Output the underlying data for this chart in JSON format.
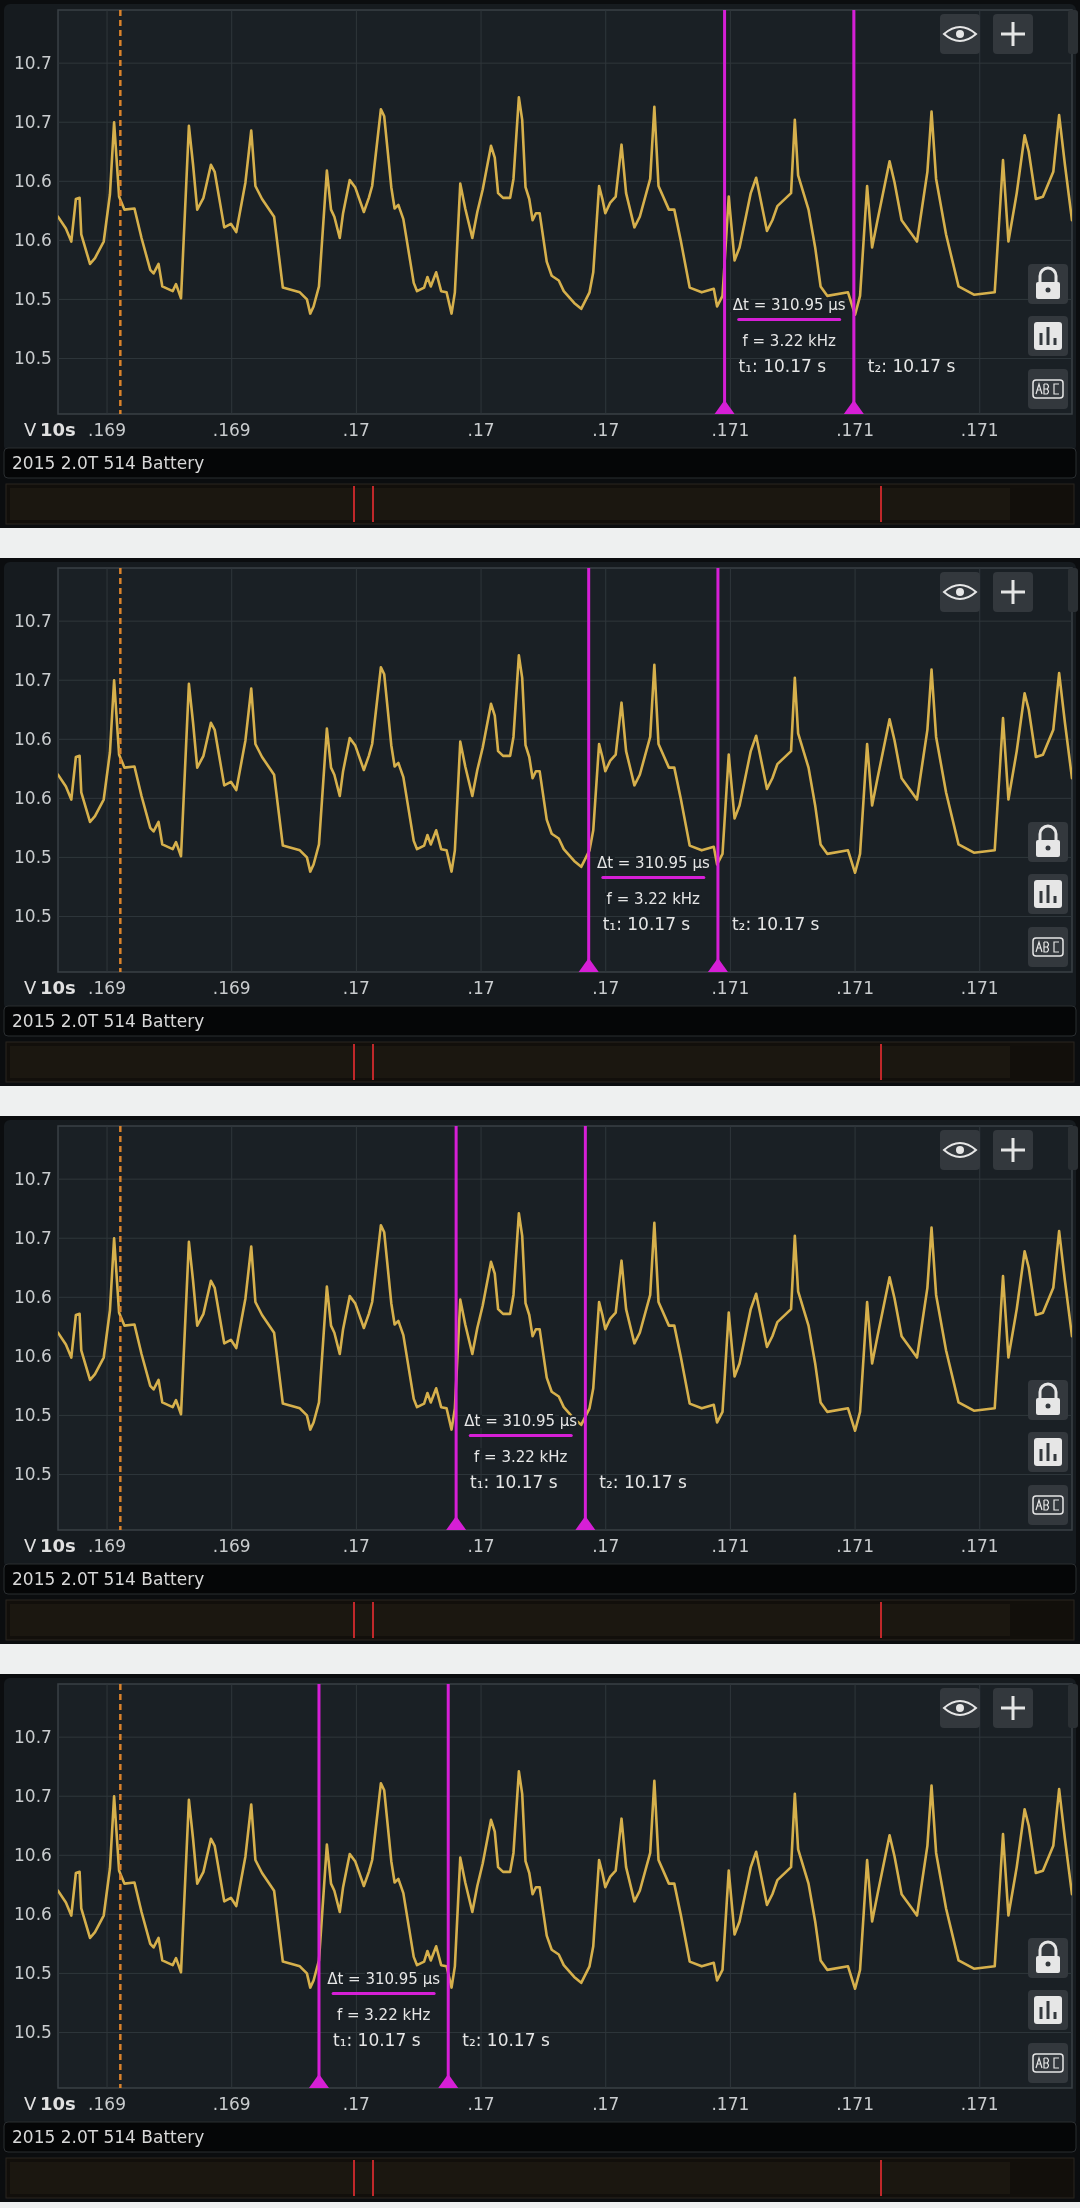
{
  "chart_data": [
    {
      "type": "line",
      "title": "2015 2.0T 514 Battery",
      "xlabel": "10s",
      "ylabel": "V",
      "grid": true,
      "x": [
        0.168932,
        0.168951,
        0.168964,
        0.168975,
        0.168984,
        0.168988,
        0.169009,
        0.169021,
        0.169042,
        0.169057,
        0.169067,
        0.169079,
        0.169092,
        0.169116,
        0.169133,
        0.169154,
        0.169162,
        0.169174,
        0.169183,
        0.169208,
        0.169216,
        0.169228,
        0.169247,
        0.169257,
        0.169267,
        0.169282,
        0.1693,
        0.169309,
        0.169332,
        0.169348,
        0.169361,
        0.169383,
        0.169397,
        0.169407,
        0.169423,
        0.169452,
        0.169473,
        0.169514,
        0.169531,
        0.169539,
        0.169547,
        0.16956,
        0.169579,
        0.169589,
        0.169597,
        0.16961,
        0.169618,
        0.169634,
        0.169647,
        0.169668,
        0.16968,
        0.169688,
        0.169709,
        0.169717,
        0.169734,
        0.169742,
        0.169751,
        0.169763,
        0.169788,
        0.169796,
        0.169813,
        0.169821,
        0.169829,
        0.169842,
        0.169854,
        0.169867,
        0.169879,
        0.169887,
        0.1699,
        0.169912,
        0.169929,
        0.169941,
        0.169954,
        0.169974,
        0.169983,
        0.169991,
        0.170003,
        0.17002,
        0.170028,
        0.170041,
        0.170049,
        0.170057,
        0.170066,
        0.170074,
        0.170082,
        0.170091,
        0.170108,
        0.17012,
        0.170137,
        0.170149,
        0.170174,
        0.170191,
        0.170211,
        0.17022,
        0.170234,
        0.170242,
        0.170249,
        0.170261,
        0.170274,
        0.170288,
        0.170299,
        0.170319,
        0.170332,
        0.170357,
        0.170367,
        0.170377,
        0.170402,
        0.170415,
        0.170431,
        0.170452,
        0.170481,
        0.17051,
        0.170518,
        0.170531,
        0.170546,
        0.17056,
        0.170572,
        0.170599,
        0.170612,
        0.170638,
        0.170651,
        0.170663,
        0.170696,
        0.170705,
        0.170713,
        0.170738,
        0.170754,
        0.170767,
        0.170783,
        0.170833,
        0.17085,
        0.170862,
        0.170879,
        0.170891,
        0.170904,
        0.170933,
        0.170945,
        0.170962,
        0.170987,
        0.170999,
        0.171024,
        0.171034,
        0.171045,
        0.171069,
        0.171099,
        0.171136,
        0.171186,
        0.171206,
        0.171219,
        0.171239,
        0.171258,
        0.171268,
        0.171285,
        0.171302,
        0.171327,
        0.171341,
        0.171355,
        0.171372
      ],
      "series": [
        {
          "color": "#d6b04c",
          "values": [
            10.595,
            10.585,
            10.574,
            10.61,
            10.611,
            10.58,
            10.555,
            10.56,
            10.574,
            10.614,
            10.675,
            10.612,
            10.601,
            10.602,
            10.577,
            10.55,
            10.547,
            10.555,
            10.536,
            10.532,
            10.538,
            10.526,
            10.672,
            10.639,
            10.601,
            10.611,
            10.639,
            10.633,
            10.586,
            10.589,
            10.582,
            10.624,
            10.668,
            10.621,
            10.61,
            10.595,
            10.535,
            10.531,
            10.525,
            10.513,
            10.519,
            10.536,
            10.634,
            10.601,
            10.595,
            10.577,
            10.598,
            10.626,
            10.62,
            10.599,
            10.611,
            10.621,
            10.686,
            10.68,
            10.62,
            10.602,
            10.605,
            10.593,
            10.539,
            10.532,
            10.535,
            10.544,
            10.536,
            10.548,
            10.532,
            10.531,
            10.513,
            10.531,
            10.623,
            10.602,
            10.577,
            10.599,
            10.618,
            10.655,
            10.645,
            10.615,
            10.611,
            10.611,
            10.627,
            10.696,
            10.677,
            10.62,
            10.61,
            10.592,
            10.598,
            10.598,
            10.557,
            10.545,
            10.541,
            10.532,
            10.522,
            10.517,
            10.531,
            10.548,
            10.621,
            10.61,
            10.598,
            10.607,
            10.612,
            10.656,
            10.615,
            10.586,
            10.595,
            10.627,
            10.688,
            10.621,
            10.601,
            10.601,
            10.574,
            10.535,
            10.531,
            10.534,
            10.519,
            10.528,
            10.612,
            10.558,
            10.569,
            10.615,
            10.628,
            10.583,
            10.592,
            10.604,
            10.615,
            10.677,
            10.63,
            10.601,
            10.569,
            10.536,
            10.528,
            10.531,
            10.512,
            10.528,
            10.621,
            10.569,
            10.592,
            10.642,
            10.624,
            10.592,
            10.58,
            10.574,
            10.633,
            10.684,
            10.627,
            10.58,
            10.536,
            10.529,
            10.531,
            10.643,
            10.574,
            10.615,
            10.664,
            10.65,
            10.61,
            10.612,
            10.633,
            10.681,
            10.639,
            10.592
          ]
        }
      ],
      "xlim": [
        0.168932,
        0.171372
      ],
      "ylim": [
        10.428,
        10.77
      ],
      "xticks": [
        {
          "value": 0.16905,
          "label": ".169"
        },
        {
          "value": 0.16935,
          "label": ".169"
        },
        {
          "value": 0.16965,
          "label": ".17"
        },
        {
          "value": 0.16995,
          "label": ".17"
        },
        {
          "value": 0.17025,
          "label": ".17"
        },
        {
          "value": 0.17055,
          "label": ".171"
        },
        {
          "value": 0.17085,
          "label": ".171"
        },
        {
          "value": 0.17115,
          "label": ".171"
        }
      ],
      "yticks": [
        {
          "value": 10.725,
          "label": "10.7"
        },
        {
          "value": 10.675,
          "label": "10.7"
        },
        {
          "value": 10.625,
          "label": "10.6"
        },
        {
          "value": 10.575,
          "label": "10.6"
        },
        {
          "value": 10.525,
          "label": "10.5"
        },
        {
          "value": 10.475,
          "label": "10.5"
        }
      ],
      "ref_lines": [
        {
          "axis": "x",
          "value": 0.169082,
          "label": null,
          "color": "#d9822b",
          "line_style": "dashed"
        },
        {
          "axis": "x",
          "value": 0.170536,
          "color": "#d61fd6",
          "line_style": "solid"
        },
        {
          "axis": "x",
          "value": 0.170847,
          "color": "#d61fd6",
          "line_style": "solid"
        }
      ],
      "annotations": [
        "Δt = 310.95 µs",
        "f = 3.22 kHz",
        "t₁: 10.17 s",
        "t₂: 10.17 s"
      ]
    },
    {
      "type": "line",
      "title": "2015 2.0T 514 Battery",
      "xlabel": "10s",
      "ylabel": "V",
      "grid": true,
      "x": [
        0.168932,
        0.168951,
        0.168964,
        0.168975,
        0.168984,
        0.168988,
        0.169009,
        0.169021,
        0.169042,
        0.169057,
        0.169067,
        0.169079,
        0.169092,
        0.169116,
        0.169133,
        0.169154,
        0.169162,
        0.169174,
        0.169183,
        0.169208,
        0.169216,
        0.169228,
        0.169247,
        0.169257,
        0.169267,
        0.169282,
        0.1693,
        0.169309,
        0.169332,
        0.169348,
        0.169361,
        0.169383,
        0.169397,
        0.169407,
        0.169423,
        0.169452,
        0.169473,
        0.169514,
        0.169531,
        0.169539,
        0.169547,
        0.16956,
        0.169579,
        0.169589,
        0.169597,
        0.16961,
        0.169618,
        0.169634,
        0.169647,
        0.169668,
        0.16968,
        0.169688,
        0.169709,
        0.169717,
        0.169734,
        0.169742,
        0.169751,
        0.169763,
        0.169788,
        0.169796,
        0.169813,
        0.169821,
        0.169829,
        0.169842,
        0.169854,
        0.169867,
        0.169879,
        0.169887,
        0.1699,
        0.169912,
        0.169929,
        0.169941,
        0.169954,
        0.169974,
        0.169983,
        0.169991,
        0.170003,
        0.17002,
        0.170028,
        0.170041,
        0.170049,
        0.170057,
        0.170066,
        0.170074,
        0.170082,
        0.170091,
        0.170108,
        0.17012,
        0.170137,
        0.170149,
        0.170174,
        0.170191,
        0.170211,
        0.17022,
        0.170234,
        0.170242,
        0.170249,
        0.170261,
        0.170274,
        0.170288,
        0.170299,
        0.170319,
        0.170332,
        0.170357,
        0.170367,
        0.170377,
        0.170402,
        0.170415,
        0.170431,
        0.170452,
        0.170481,
        0.17051,
        0.170518,
        0.170531,
        0.170546,
        0.17056,
        0.170572,
        0.170599,
        0.170612,
        0.170638,
        0.170651,
        0.170663,
        0.170696,
        0.170705,
        0.170713,
        0.170738,
        0.170754,
        0.170767,
        0.170783,
        0.170833,
        0.17085,
        0.170862,
        0.170879,
        0.170891,
        0.170904,
        0.170933,
        0.170945,
        0.170962,
        0.170987,
        0.170999,
        0.171024,
        0.171034,
        0.171045,
        0.171069,
        0.171099,
        0.171136,
        0.171186,
        0.171206,
        0.171219,
        0.171239,
        0.171258,
        0.171268,
        0.171285,
        0.171302,
        0.171327,
        0.171341,
        0.171355,
        0.171372
      ],
      "series": [
        {
          "color": "#d6b04c",
          "values": [
            10.595,
            10.585,
            10.574,
            10.61,
            10.611,
            10.58,
            10.555,
            10.56,
            10.574,
            10.614,
            10.675,
            10.612,
            10.601,
            10.602,
            10.577,
            10.55,
            10.547,
            10.555,
            10.536,
            10.532,
            10.538,
            10.526,
            10.672,
            10.639,
            10.601,
            10.611,
            10.639,
            10.633,
            10.586,
            10.589,
            10.582,
            10.624,
            10.668,
            10.621,
            10.61,
            10.595,
            10.535,
            10.531,
            10.525,
            10.513,
            10.519,
            10.536,
            10.634,
            10.601,
            10.595,
            10.577,
            10.598,
            10.626,
            10.62,
            10.599,
            10.611,
            10.621,
            10.686,
            10.68,
            10.62,
            10.602,
            10.605,
            10.593,
            10.539,
            10.532,
            10.535,
            10.544,
            10.536,
            10.548,
            10.532,
            10.531,
            10.513,
            10.531,
            10.623,
            10.602,
            10.577,
            10.599,
            10.618,
            10.655,
            10.645,
            10.615,
            10.611,
            10.611,
            10.627,
            10.696,
            10.677,
            10.62,
            10.61,
            10.592,
            10.598,
            10.598,
            10.557,
            10.545,
            10.541,
            10.532,
            10.522,
            10.517,
            10.531,
            10.548,
            10.621,
            10.61,
            10.598,
            10.607,
            10.612,
            10.656,
            10.615,
            10.586,
            10.595,
            10.627,
            10.688,
            10.621,
            10.601,
            10.601,
            10.574,
            10.535,
            10.531,
            10.534,
            10.519,
            10.528,
            10.612,
            10.558,
            10.569,
            10.615,
            10.628,
            10.583,
            10.592,
            10.604,
            10.615,
            10.677,
            10.63,
            10.601,
            10.569,
            10.536,
            10.528,
            10.531,
            10.512,
            10.528,
            10.621,
            10.569,
            10.592,
            10.642,
            10.624,
            10.592,
            10.58,
            10.574,
            10.633,
            10.684,
            10.627,
            10.58,
            10.536,
            10.529,
            10.531,
            10.643,
            10.574,
            10.615,
            10.664,
            10.65,
            10.61,
            10.612,
            10.633,
            10.681,
            10.639,
            10.592
          ]
        }
      ],
      "xlim": [
        0.168932,
        0.171372
      ],
      "ylim": [
        10.428,
        10.77
      ],
      "xticks": [
        {
          "value": 0.16905,
          "label": ".169"
        },
        {
          "value": 0.16935,
          "label": ".169"
        },
        {
          "value": 0.16965,
          "label": ".17"
        },
        {
          "value": 0.16995,
          "label": ".17"
        },
        {
          "value": 0.17025,
          "label": ".17"
        },
        {
          "value": 0.17055,
          "label": ".171"
        },
        {
          "value": 0.17085,
          "label": ".171"
        },
        {
          "value": 0.17115,
          "label": ".171"
        }
      ],
      "yticks": [
        {
          "value": 10.725,
          "label": "10.7"
        },
        {
          "value": 10.675,
          "label": "10.7"
        },
        {
          "value": 10.625,
          "label": "10.6"
        },
        {
          "value": 10.575,
          "label": "10.6"
        },
        {
          "value": 10.525,
          "label": "10.5"
        },
        {
          "value": 10.475,
          "label": "10.5"
        }
      ],
      "ref_lines": [
        {
          "axis": "x",
          "value": 0.169082,
          "label": null,
          "color": "#d9822b",
          "line_style": "dashed"
        },
        {
          "axis": "x",
          "value": 0.170209,
          "color": "#d61fd6",
          "line_style": "solid"
        },
        {
          "axis": "x",
          "value": 0.17052,
          "color": "#d61fd6",
          "line_style": "solid"
        }
      ],
      "annotations": [
        "Δt = 310.95 µs",
        "f = 3.22 kHz",
        "t₁: 10.17 s",
        "t₂: 10.17 s"
      ]
    },
    {
      "type": "line",
      "title": "2015 2.0T 514 Battery",
      "xlabel": "10s",
      "ylabel": "V",
      "grid": true,
      "x": [
        0.168932,
        0.168951,
        0.168964,
        0.168975,
        0.168984,
        0.168988,
        0.169009,
        0.169021,
        0.169042,
        0.169057,
        0.169067,
        0.169079,
        0.169092,
        0.169116,
        0.169133,
        0.169154,
        0.169162,
        0.169174,
        0.169183,
        0.169208,
        0.169216,
        0.169228,
        0.169247,
        0.169257,
        0.169267,
        0.169282,
        0.1693,
        0.169309,
        0.169332,
        0.169348,
        0.169361,
        0.169383,
        0.169397,
        0.169407,
        0.169423,
        0.169452,
        0.169473,
        0.169514,
        0.169531,
        0.169539,
        0.169547,
        0.16956,
        0.169579,
        0.169589,
        0.169597,
        0.16961,
        0.169618,
        0.169634,
        0.169647,
        0.169668,
        0.16968,
        0.169688,
        0.169709,
        0.169717,
        0.169734,
        0.169742,
        0.169751,
        0.169763,
        0.169788,
        0.169796,
        0.169813,
        0.169821,
        0.169829,
        0.169842,
        0.169854,
        0.169867,
        0.169879,
        0.169887,
        0.1699,
        0.169912,
        0.169929,
        0.169941,
        0.169954,
        0.169974,
        0.169983,
        0.169991,
        0.170003,
        0.17002,
        0.170028,
        0.170041,
        0.170049,
        0.170057,
        0.170066,
        0.170074,
        0.170082,
        0.170091,
        0.170108,
        0.17012,
        0.170137,
        0.170149,
        0.170174,
        0.170191,
        0.170211,
        0.17022,
        0.170234,
        0.170242,
        0.170249,
        0.170261,
        0.170274,
        0.170288,
        0.170299,
        0.170319,
        0.170332,
        0.170357,
        0.170367,
        0.170377,
        0.170402,
        0.170415,
        0.170431,
        0.170452,
        0.170481,
        0.17051,
        0.170518,
        0.170531,
        0.170546,
        0.17056,
        0.170572,
        0.170599,
        0.170612,
        0.170638,
        0.170651,
        0.170663,
        0.170696,
        0.170705,
        0.170713,
        0.170738,
        0.170754,
        0.170767,
        0.170783,
        0.170833,
        0.17085,
        0.170862,
        0.170879,
        0.170891,
        0.170904,
        0.170933,
        0.170945,
        0.170962,
        0.170987,
        0.170999,
        0.171024,
        0.171034,
        0.171045,
        0.171069,
        0.171099,
        0.171136,
        0.171186,
        0.171206,
        0.171219,
        0.171239,
        0.171258,
        0.171268,
        0.171285,
        0.171302,
        0.171327,
        0.171341,
        0.171355,
        0.171372
      ],
      "series": [
        {
          "color": "#d6b04c",
          "values": [
            10.595,
            10.585,
            10.574,
            10.61,
            10.611,
            10.58,
            10.555,
            10.56,
            10.574,
            10.614,
            10.675,
            10.612,
            10.601,
            10.602,
            10.577,
            10.55,
            10.547,
            10.555,
            10.536,
            10.532,
            10.538,
            10.526,
            10.672,
            10.639,
            10.601,
            10.611,
            10.639,
            10.633,
            10.586,
            10.589,
            10.582,
            10.624,
            10.668,
            10.621,
            10.61,
            10.595,
            10.535,
            10.531,
            10.525,
            10.513,
            10.519,
            10.536,
            10.634,
            10.601,
            10.595,
            10.577,
            10.598,
            10.626,
            10.62,
            10.599,
            10.611,
            10.621,
            10.686,
            10.68,
            10.62,
            10.602,
            10.605,
            10.593,
            10.539,
            10.532,
            10.535,
            10.544,
            10.536,
            10.548,
            10.532,
            10.531,
            10.513,
            10.531,
            10.623,
            10.602,
            10.577,
            10.599,
            10.618,
            10.655,
            10.645,
            10.615,
            10.611,
            10.611,
            10.627,
            10.696,
            10.677,
            10.62,
            10.61,
            10.592,
            10.598,
            10.598,
            10.557,
            10.545,
            10.541,
            10.532,
            10.522,
            10.517,
            10.531,
            10.548,
            10.621,
            10.61,
            10.598,
            10.607,
            10.612,
            10.656,
            10.615,
            10.586,
            10.595,
            10.627,
            10.688,
            10.621,
            10.601,
            10.601,
            10.574,
            10.535,
            10.531,
            10.534,
            10.519,
            10.528,
            10.612,
            10.558,
            10.569,
            10.615,
            10.628,
            10.583,
            10.592,
            10.604,
            10.615,
            10.677,
            10.63,
            10.601,
            10.569,
            10.536,
            10.528,
            10.531,
            10.512,
            10.528,
            10.621,
            10.569,
            10.592,
            10.642,
            10.624,
            10.592,
            10.58,
            10.574,
            10.633,
            10.684,
            10.627,
            10.58,
            10.536,
            10.529,
            10.531,
            10.643,
            10.574,
            10.615,
            10.664,
            10.65,
            10.61,
            10.612,
            10.633,
            10.681,
            10.639,
            10.592
          ]
        }
      ],
      "xlim": [
        0.168932,
        0.171372
      ],
      "ylim": [
        10.428,
        10.77
      ],
      "xticks": [
        {
          "value": 0.16905,
          "label": ".169"
        },
        {
          "value": 0.16935,
          "label": ".169"
        },
        {
          "value": 0.16965,
          "label": ".17"
        },
        {
          "value": 0.16995,
          "label": ".17"
        },
        {
          "value": 0.17025,
          "label": ".17"
        },
        {
          "value": 0.17055,
          "label": ".171"
        },
        {
          "value": 0.17085,
          "label": ".171"
        },
        {
          "value": 0.17115,
          "label": ".171"
        }
      ],
      "yticks": [
        {
          "value": 10.725,
          "label": "10.7"
        },
        {
          "value": 10.675,
          "label": "10.7"
        },
        {
          "value": 10.625,
          "label": "10.6"
        },
        {
          "value": 10.575,
          "label": "10.6"
        },
        {
          "value": 10.525,
          "label": "10.5"
        },
        {
          "value": 10.475,
          "label": "10.5"
        }
      ],
      "ref_lines": [
        {
          "axis": "x",
          "value": 0.169082,
          "label": null,
          "color": "#d9822b",
          "line_style": "dashed"
        },
        {
          "axis": "x",
          "value": 0.16989,
          "color": "#d61fd6",
          "line_style": "solid"
        },
        {
          "axis": "x",
          "value": 0.170201,
          "color": "#d61fd6",
          "line_style": "solid"
        }
      ],
      "annotations": [
        "Δt = 310.95 µs",
        "f = 3.22 kHz",
        "t₁: 10.17 s",
        "t₂: 10.17 s"
      ]
    },
    {
      "type": "line",
      "title": "2015 2.0T 514 Battery",
      "xlabel": "10s",
      "ylabel": "V",
      "grid": true,
      "x": [
        0.168932,
        0.168951,
        0.168964,
        0.168975,
        0.168984,
        0.168988,
        0.169009,
        0.169021,
        0.169042,
        0.169057,
        0.169067,
        0.169079,
        0.169092,
        0.169116,
        0.169133,
        0.169154,
        0.169162,
        0.169174,
        0.169183,
        0.169208,
        0.169216,
        0.169228,
        0.169247,
        0.169257,
        0.169267,
        0.169282,
        0.1693,
        0.169309,
        0.169332,
        0.169348,
        0.169361,
        0.169383,
        0.169397,
        0.169407,
        0.169423,
        0.169452,
        0.169473,
        0.169514,
        0.169531,
        0.169539,
        0.169547,
        0.16956,
        0.169579,
        0.169589,
        0.169597,
        0.16961,
        0.169618,
        0.169634,
        0.169647,
        0.169668,
        0.16968,
        0.169688,
        0.169709,
        0.169717,
        0.169734,
        0.169742,
        0.169751,
        0.169763,
        0.169788,
        0.169796,
        0.169813,
        0.169821,
        0.169829,
        0.169842,
        0.169854,
        0.169867,
        0.169879,
        0.169887,
        0.1699,
        0.169912,
        0.169929,
        0.169941,
        0.169954,
        0.169974,
        0.169983,
        0.169991,
        0.170003,
        0.17002,
        0.170028,
        0.170041,
        0.170049,
        0.170057,
        0.170066,
        0.170074,
        0.170082,
        0.170091,
        0.170108,
        0.17012,
        0.170137,
        0.170149,
        0.170174,
        0.170191,
        0.170211,
        0.17022,
        0.170234,
        0.170242,
        0.170249,
        0.170261,
        0.170274,
        0.170288,
        0.170299,
        0.170319,
        0.170332,
        0.170357,
        0.170367,
        0.170377,
        0.170402,
        0.170415,
        0.170431,
        0.170452,
        0.170481,
        0.17051,
        0.170518,
        0.170531,
        0.170546,
        0.17056,
        0.170572,
        0.170599,
        0.170612,
        0.170638,
        0.170651,
        0.170663,
        0.170696,
        0.170705,
        0.170713,
        0.170738,
        0.170754,
        0.170767,
        0.170783,
        0.170833,
        0.17085,
        0.170862,
        0.170879,
        0.170891,
        0.170904,
        0.170933,
        0.170945,
        0.170962,
        0.170987,
        0.170999,
        0.171024,
        0.171034,
        0.171045,
        0.171069,
        0.171099,
        0.171136,
        0.171186,
        0.171206,
        0.171219,
        0.171239,
        0.171258,
        0.171268,
        0.171285,
        0.171302,
        0.171327,
        0.171341,
        0.171355,
        0.171372
      ],
      "series": [
        {
          "color": "#d6b04c",
          "values": [
            10.595,
            10.585,
            10.574,
            10.61,
            10.611,
            10.58,
            10.555,
            10.56,
            10.574,
            10.614,
            10.675,
            10.612,
            10.601,
            10.602,
            10.577,
            10.55,
            10.547,
            10.555,
            10.536,
            10.532,
            10.538,
            10.526,
            10.672,
            10.639,
            10.601,
            10.611,
            10.639,
            10.633,
            10.586,
            10.589,
            10.582,
            10.624,
            10.668,
            10.621,
            10.61,
            10.595,
            10.535,
            10.531,
            10.525,
            10.513,
            10.519,
            10.536,
            10.634,
            10.601,
            10.595,
            10.577,
            10.598,
            10.626,
            10.62,
            10.599,
            10.611,
            10.621,
            10.686,
            10.68,
            10.62,
            10.602,
            10.605,
            10.593,
            10.539,
            10.532,
            10.535,
            10.544,
            10.536,
            10.548,
            10.532,
            10.531,
            10.513,
            10.531,
            10.623,
            10.602,
            10.577,
            10.599,
            10.618,
            10.655,
            10.645,
            10.615,
            10.611,
            10.611,
            10.627,
            10.696,
            10.677,
            10.62,
            10.61,
            10.592,
            10.598,
            10.598,
            10.557,
            10.545,
            10.541,
            10.532,
            10.522,
            10.517,
            10.531,
            10.548,
            10.621,
            10.61,
            10.598,
            10.607,
            10.612,
            10.656,
            10.615,
            10.586,
            10.595,
            10.627,
            10.688,
            10.621,
            10.601,
            10.601,
            10.574,
            10.535,
            10.531,
            10.534,
            10.519,
            10.528,
            10.612,
            10.558,
            10.569,
            10.615,
            10.628,
            10.583,
            10.592,
            10.604,
            10.615,
            10.677,
            10.63,
            10.601,
            10.569,
            10.536,
            10.528,
            10.531,
            10.512,
            10.528,
            10.621,
            10.569,
            10.592,
            10.642,
            10.624,
            10.592,
            10.58,
            10.574,
            10.633,
            10.684,
            10.627,
            10.58,
            10.536,
            10.529,
            10.531,
            10.643,
            10.574,
            10.615,
            10.664,
            10.65,
            10.61,
            10.612,
            10.633,
            10.681,
            10.639,
            10.592
          ]
        }
      ],
      "xlim": [
        0.168932,
        0.171372
      ],
      "ylim": [
        10.428,
        10.77
      ],
      "xticks": [
        {
          "value": 0.16905,
          "label": ".169"
        },
        {
          "value": 0.16935,
          "label": ".169"
        },
        {
          "value": 0.16965,
          "label": ".17"
        },
        {
          "value": 0.16995,
          "label": ".17"
        },
        {
          "value": 0.17025,
          "label": ".17"
        },
        {
          "value": 0.17055,
          "label": ".171"
        },
        {
          "value": 0.17085,
          "label": ".171"
        },
        {
          "value": 0.17115,
          "label": ".171"
        }
      ],
      "yticks": [
        {
          "value": 10.725,
          "label": "10.7"
        },
        {
          "value": 10.675,
          "label": "10.7"
        },
        {
          "value": 10.625,
          "label": "10.6"
        },
        {
          "value": 10.575,
          "label": "10.6"
        },
        {
          "value": 10.525,
          "label": "10.5"
        },
        {
          "value": 10.475,
          "label": "10.5"
        }
      ],
      "ref_lines": [
        {
          "axis": "x",
          "value": 0.169082,
          "label": null,
          "color": "#d9822b",
          "line_style": "dashed"
        },
        {
          "axis": "x",
          "value": 0.16956,
          "color": "#d61fd6",
          "line_style": "solid"
        },
        {
          "axis": "x",
          "value": 0.169871,
          "color": "#d61fd6",
          "line_style": "solid"
        }
      ],
      "annotations": [
        "Δt = 310.95 µs",
        "f = 3.22 kHz",
        "t₁: 10.17 s",
        "t₂: 10.17 s"
      ]
    }
  ]
}
